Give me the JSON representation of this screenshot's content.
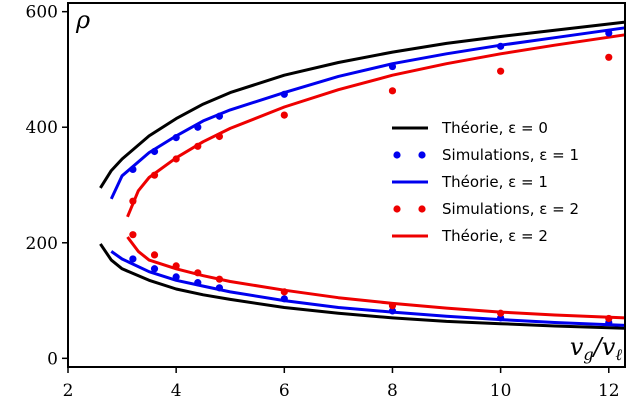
{
  "chart_data": {
    "type": "line",
    "xlabel": "v_g/v_ℓ",
    "ylabel": "ρ",
    "xlim": [
      2,
      12.3
    ],
    "ylim": [
      -15,
      615
    ],
    "x_ticks": [
      2,
      4,
      6,
      8,
      10,
      12
    ],
    "y_ticks": [
      0,
      200,
      400,
      600
    ],
    "grid": false,
    "legend_placement": "center-right",
    "series": [
      {
        "name": "Théorie, ε = 0",
        "kind": "line",
        "color": "#000000",
        "branches": [
          {
            "x": [
              2.6,
              2.8,
              3.0,
              3.5,
              4.0,
              4.5,
              5.0,
              6.0,
              7.0,
              8.0,
              9.0,
              10.0,
              11.0,
              12.3
            ],
            "y": [
              295,
              325,
              345,
              385,
              415,
              440,
              460,
              490,
              512,
              530,
              545,
              557,
              568,
              582
            ]
          },
          {
            "x": [
              2.6,
              2.8,
              3.0,
              3.5,
              4.0,
              4.5,
              5.0,
              6.0,
              7.0,
              8.0,
              9.0,
              10.0,
              11.0,
              12.3
            ],
            "y": [
              198,
              170,
              155,
              135,
              120,
              110,
              102,
              88,
              78,
              70,
              64,
              60,
              56,
              52
            ]
          }
        ]
      },
      {
        "name": "Simulations, ε = 1",
        "kind": "scatter",
        "color": "#0000ee",
        "points": {
          "x": [
            3.2,
            3.6,
            4.0,
            4.4,
            4.8,
            6.0,
            8.0,
            10.0,
            12.0,
            3.2,
            3.6,
            4.0,
            4.4,
            4.8,
            6.0,
            8.0,
            10.0,
            12.0
          ],
          "y": [
            327,
            358,
            382,
            400,
            419,
            457,
            505,
            540,
            563,
            172,
            155,
            141,
            131,
            122,
            103,
            82,
            70,
            62
          ]
        }
      },
      {
        "name": "Théorie, ε = 1",
        "kind": "line",
        "color": "#0000ee",
        "branches": [
          {
            "x": [
              2.8,
              3.0,
              3.5,
              4.0,
              4.5,
              5.0,
              6.0,
              7.0,
              8.0,
              9.0,
              10.0,
              11.0,
              12.3
            ],
            "y": [
              276,
              316,
              356,
              385,
              411,
              430,
              460,
              488,
              510,
              527,
              542,
              555,
              572
            ]
          },
          {
            "x": [
              2.8,
              3.0,
              3.5,
              4.0,
              4.5,
              5.0,
              6.0,
              7.0,
              8.0,
              9.0,
              10.0,
              11.0,
              12.3
            ],
            "y": [
              185,
              172,
              150,
              135,
              125,
              115,
              100,
              88,
              80,
              73,
              67,
              62,
              57
            ]
          }
        ]
      },
      {
        "name": "Simulations, ε = 2",
        "kind": "scatter",
        "color": "#ee0000",
        "points": {
          "x": [
            3.2,
            3.6,
            4.0,
            4.4,
            4.8,
            6.0,
            8.0,
            10.0,
            12.0,
            3.2,
            3.6,
            4.0,
            4.4,
            4.8,
            6.0,
            8.0,
            10.0,
            12.0
          ],
          "y": [
            272,
            317,
            345,
            367,
            384,
            421,
            463,
            497,
            521,
            214,
            179,
            160,
            148,
            137,
            115,
            91,
            78,
            69
          ]
        }
      },
      {
        "name": "Théorie, ε = 2",
        "kind": "line",
        "color": "#ee0000",
        "branches": [
          {
            "x": [
              3.1,
              3.3,
              3.5,
              4.0,
              4.5,
              5.0,
              6.0,
              7.0,
              8.0,
              9.0,
              10.0,
              11.0,
              12.3
            ],
            "y": [
              245,
              290,
              313,
              347,
              375,
              398,
              435,
              465,
              490,
              510,
              527,
              542,
              560
            ]
          },
          {
            "x": [
              3.1,
              3.3,
              3.5,
              4.0,
              4.5,
              5.0,
              6.0,
              7.0,
              8.0,
              9.0,
              10.0,
              11.0,
              12.3
            ],
            "y": [
              210,
              185,
              170,
              155,
              143,
              133,
              118,
              105,
              95,
              87,
              80,
              75,
              70
            ]
          }
        ]
      }
    ]
  }
}
